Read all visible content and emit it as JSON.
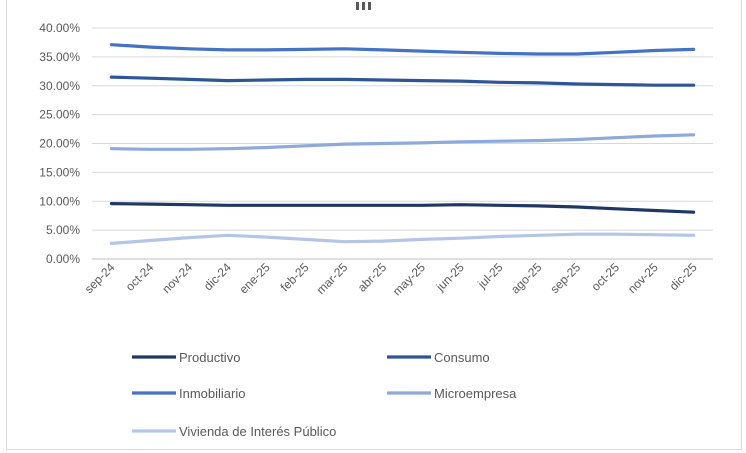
{
  "chart_data": {
    "type": "line",
    "title": "",
    "xlabel": "",
    "ylabel": "",
    "ylim": [
      0,
      40
    ],
    "y_ticks": [
      "0.00%",
      "5.00%",
      "10.00%",
      "15.00%",
      "20.00%",
      "25.00%",
      "30.00%",
      "35.00%",
      "40.00%"
    ],
    "grid": true,
    "legend_position": "bottom",
    "categories": [
      "sep-24",
      "oct-24",
      "nov-24",
      "dic-24",
      "ene-25",
      "feb-25",
      "mar-25",
      "abr-25",
      "may-25",
      "jun-25",
      "jul-25",
      "ago-25",
      "sep-25",
      "oct-25",
      "nov-25",
      "dic-25"
    ],
    "series": [
      {
        "name": "Productivo",
        "color": "#203864",
        "values": [
          9.6,
          9.5,
          9.4,
          9.3,
          9.3,
          9.3,
          9.3,
          9.3,
          9.3,
          9.4,
          9.3,
          9.2,
          9.0,
          8.7,
          8.4,
          8.1
        ]
      },
      {
        "name": "Consumo",
        "color": "#2f5597",
        "values": [
          31.5,
          31.3,
          31.1,
          30.9,
          31.0,
          31.1,
          31.1,
          31.0,
          30.9,
          30.8,
          30.6,
          30.5,
          30.3,
          30.2,
          30.1,
          30.1
        ]
      },
      {
        "name": "Inmobiliario",
        "color": "#4472c4",
        "values": [
          37.1,
          36.7,
          36.4,
          36.2,
          36.2,
          36.3,
          36.4,
          36.2,
          36.0,
          35.8,
          35.6,
          35.5,
          35.5,
          35.8,
          36.1,
          36.3
        ]
      },
      {
        "name": "Microempresa",
        "color": "#8ea9db",
        "values": [
          19.1,
          19.0,
          19.0,
          19.1,
          19.3,
          19.6,
          19.9,
          20.0,
          20.1,
          20.3,
          20.4,
          20.5,
          20.7,
          21.0,
          21.3,
          21.5
        ]
      },
      {
        "name": "Vivienda de Interés Público",
        "color": "#b4c6e7",
        "values": [
          2.7,
          3.2,
          3.7,
          4.1,
          3.8,
          3.4,
          3.0,
          3.1,
          3.4,
          3.6,
          3.9,
          4.1,
          4.3,
          4.3,
          4.2,
          4.1
        ]
      }
    ]
  }
}
